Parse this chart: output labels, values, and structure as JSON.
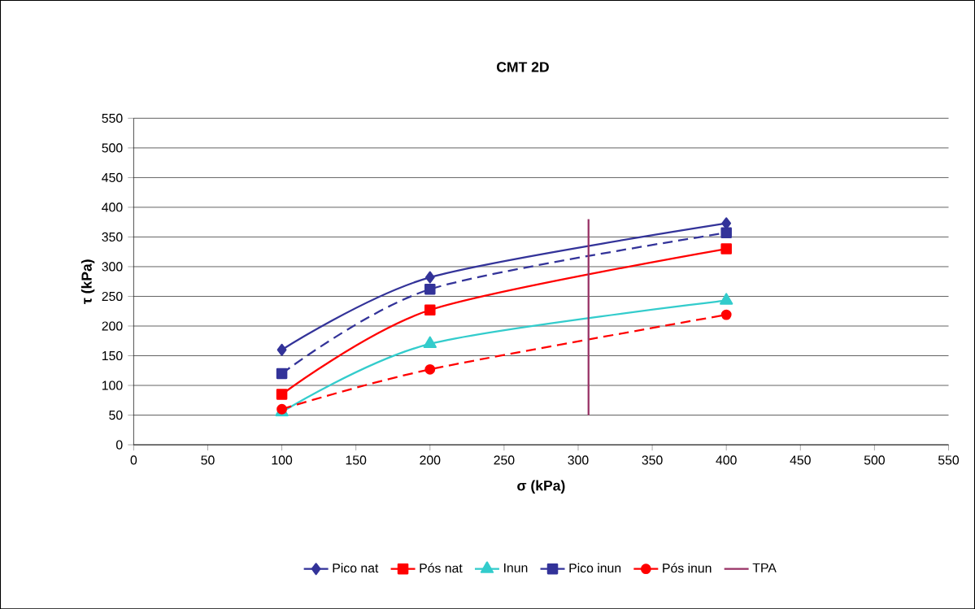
{
  "chart_data": {
    "type": "line",
    "title": "CMT 2D",
    "xlabel": "σ (kPa)",
    "ylabel": "τ (kPa)",
    "x": [
      100,
      200,
      400
    ],
    "series": [
      {
        "name": "Pico nat",
        "color": "#333399",
        "values": [
          160,
          282,
          373
        ],
        "marker": "diamond",
        "line_style": "solid"
      },
      {
        "name": "Pós nat",
        "color": "#ff0000",
        "values": [
          85,
          227,
          330
        ],
        "marker": "square",
        "line_style": "solid"
      },
      {
        "name": "Inun",
        "color": "#33cccc",
        "values": [
          55,
          170,
          243
        ],
        "marker": "triangle",
        "line_style": "solid"
      },
      {
        "name": "Pico inun",
        "color": "#333399",
        "values": [
          120,
          262,
          357
        ],
        "marker": "square",
        "line_style": "dashed"
      },
      {
        "name": "Pós inun",
        "color": "#ff0000",
        "values": [
          60,
          127,
          219
        ],
        "marker": "circle",
        "line_style": "dashed"
      },
      {
        "name": "TPA",
        "color": "#993366",
        "x": [
          307,
          307
        ],
        "values": [
          50,
          380
        ],
        "marker": "none",
        "line_style": "solid"
      }
    ],
    "xlim": [
      0,
      550
    ],
    "ylim": [
      0,
      550
    ],
    "xticks": [
      0,
      50,
      100,
      150,
      200,
      250,
      300,
      350,
      400,
      450,
      500,
      550
    ],
    "yticks": [
      0,
      50,
      100,
      150,
      200,
      250,
      300,
      350,
      400,
      450,
      500,
      550
    ],
    "grid": "y",
    "legend": "bottom"
  }
}
